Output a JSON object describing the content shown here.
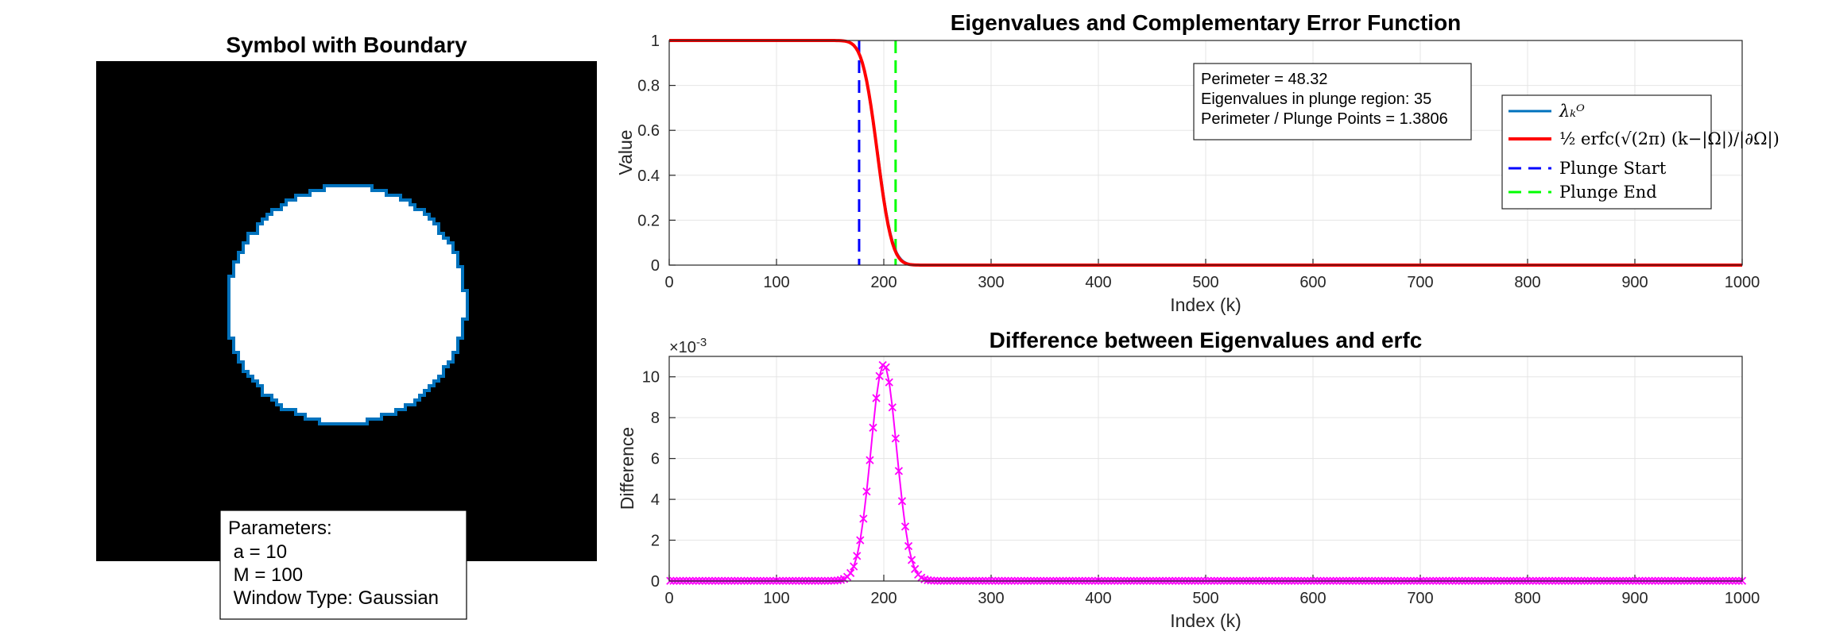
{
  "chart_data": [
    {
      "type": "image",
      "title": "Symbol with Boundary",
      "description_values": {
        "shape": "circle",
        "fill": "#ffffff",
        "background": "#000000",
        "boundary_color": "#0072BD"
      },
      "parameters": {
        "heading": "Parameters:",
        "lines": [
          " a = 10",
          " M = 100",
          " Window Type: Gaussian"
        ]
      }
    },
    {
      "type": "line",
      "title": "Eigenvalues and Complementary Error Function",
      "xlabel": "Index (k)",
      "ylabel": "Value",
      "xlim": [
        0,
        1000
      ],
      "ylim": [
        0,
        1
      ],
      "xticks": [
        0,
        100,
        200,
        300,
        400,
        500,
        600,
        700,
        800,
        900,
        1000
      ],
      "yticks": [
        0,
        0.2,
        0.4,
        0.6,
        0.8,
        1
      ],
      "ytick_labels": [
        "0",
        "0.2",
        "0.4",
        "0.6",
        "0.8",
        "1"
      ],
      "grid": true,
      "erfc_center": 194,
      "erfc_width": 15.4,
      "plunge_start": 177,
      "plunge_end": 211,
      "series": [
        {
          "name": "λₖᴼ",
          "color": "#0072BD",
          "style": "solid"
        },
        {
          "name": "½ erfc(√(2π) (k−|Ω|)/|∂Ω|)",
          "color": "#FF0000",
          "style": "solid"
        },
        {
          "name": "Plunge Start",
          "color": "#0000FF",
          "style": "dashed"
        },
        {
          "name": "Plunge End",
          "color": "#00FF00",
          "style": "dashed"
        }
      ],
      "info_box": [
        "Perimeter = 48.32",
        "Eigenvalues in plunge region: 35",
        "Perimeter / Plunge Points = 1.3806"
      ],
      "legend_placement": "top-right"
    },
    {
      "type": "line",
      "title": "Difference between Eigenvalues and erfc",
      "xlabel": "Index (k)",
      "ylabel": "Difference",
      "exponent_label": "×10",
      "exponent_power": "-3",
      "xlim": [
        0,
        1000
      ],
      "ylim": [
        0,
        0.011
      ],
      "xticks": [
        0,
        100,
        200,
        300,
        400,
        500,
        600,
        700,
        800,
        900,
        1000
      ],
      "yticks": [
        0,
        2,
        4,
        6,
        8,
        10
      ],
      "grid": true,
      "marker": "x",
      "color": "#FF00FF",
      "peak_index": 200,
      "peak_value": 0.0106,
      "peak_width": 17
    }
  ]
}
